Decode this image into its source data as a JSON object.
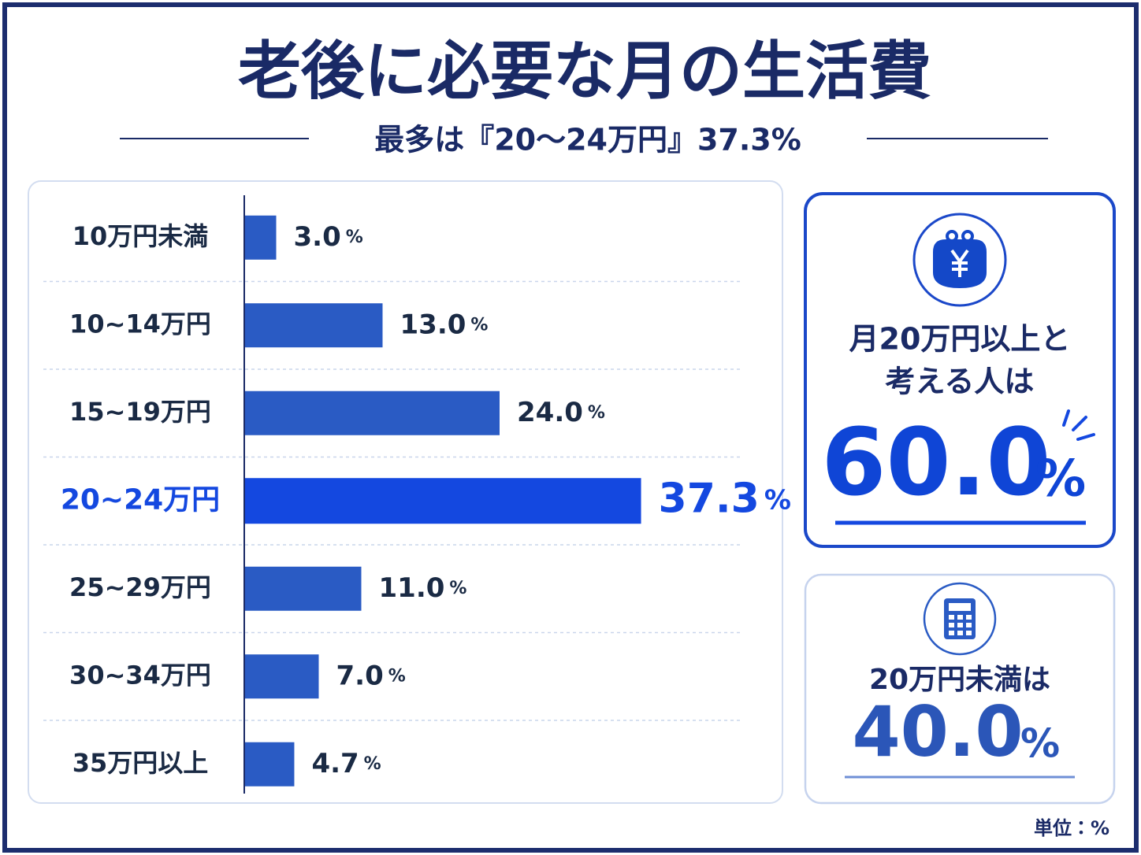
{
  "chart_data": {
    "type": "bar",
    "orientation": "horizontal",
    "title": "老後に必要な月の生活費",
    "subtitle": "最多は『20〜24万円』37.3%",
    "categories": [
      "10万円未満",
      "10~14万円",
      "15~19万円",
      "20~24万円",
      "25~29万円",
      "30~34万円",
      "35万円以上"
    ],
    "values": [
      3.0,
      13.0,
      24.0,
      37.3,
      11.0,
      7.0,
      4.7
    ],
    "value_labels": [
      "3.0",
      "13.0",
      "24.0",
      "37.3",
      "11.0",
      "7.0",
      "4.7"
    ],
    "value_label_unit": "%",
    "color": "#2a5bc4",
    "highlight": {
      "index": 3,
      "color": "#1448e0"
    },
    "xlim": [
      0,
      40
    ]
  },
  "summary_cards": [
    {
      "lines": [
        "月20万円以上と",
        "考える人は"
      ],
      "value": "60.0",
      "unit": "%"
    },
    {
      "lines": [
        "20万円未満は"
      ],
      "value": "40.0",
      "unit": "%"
    }
  ],
  "unit_note": "単位：%"
}
